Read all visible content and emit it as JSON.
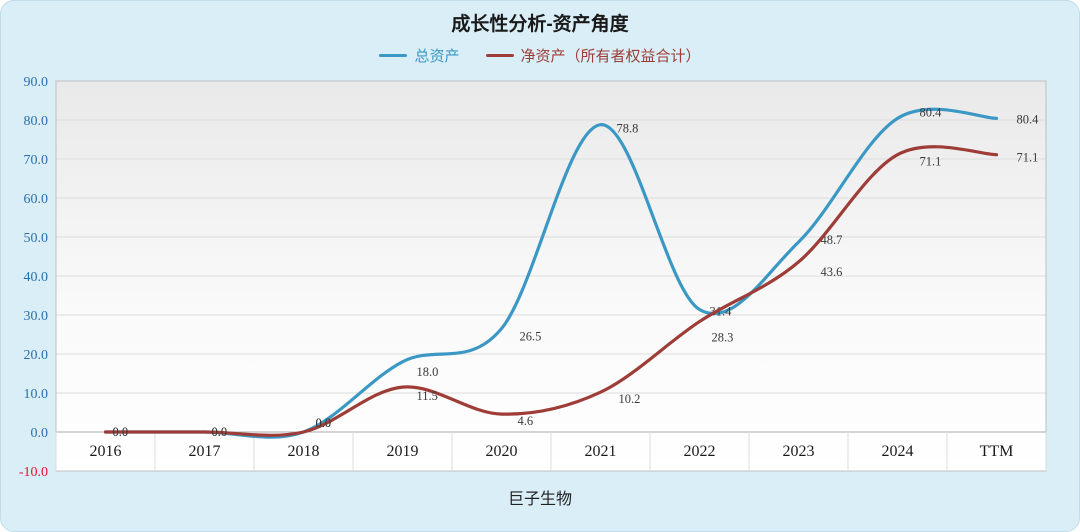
{
  "chart_data": {
    "type": "line",
    "title": "成长性分析-资产角度",
    "xlabel": "巨子生物",
    "ylabel": "",
    "categories": [
      "2016",
      "2017",
      "2018",
      "2019",
      "2020",
      "2021",
      "2022",
      "2023",
      "2024",
      "TTM"
    ],
    "series": [
      {
        "name": "总资产",
        "color": "#3b98c4",
        "values": [
          0.0,
          0.0,
          0.0,
          18.0,
          26.5,
          78.8,
          31.4,
          48.7,
          80.4,
          80.4
        ]
      },
      {
        "name": "净资产（所有者权益合计）",
        "color": "#9e3d38",
        "values": [
          0.0,
          0.0,
          0.0,
          11.5,
          4.6,
          10.2,
          28.3,
          43.6,
          71.1,
          71.1
        ]
      }
    ],
    "ylim": [
      -10,
      90
    ],
    "ytick_step": 10,
    "grid": true,
    "legend_position": "top",
    "smooth": true
  },
  "style": {
    "card_background": "#d9eef6",
    "ytick_color": "#2a6fae",
    "ytick_negative_color": "#e8112d",
    "xtick_color": "#1a1a1a",
    "gridline_color": "#dcdcdc",
    "zero_line_color": "#ababab",
    "plot_border_color": "#c0c0c0",
    "data_label_color": "#3a3a3a"
  }
}
